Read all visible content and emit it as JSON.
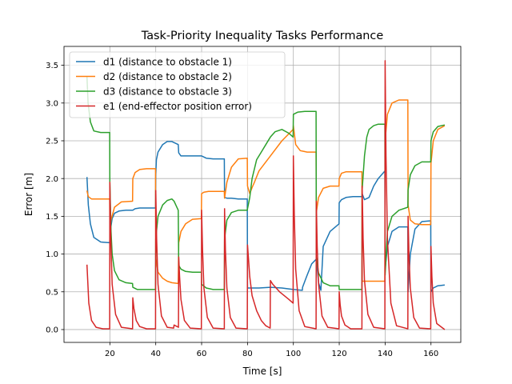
{
  "chart_data": {
    "type": "line",
    "title": "Task-Priority Inequality Tasks Performance",
    "xlabel": "Time [s]",
    "ylabel": "Error [m]",
    "xlim": [
      0,
      173
    ],
    "ylim": [
      -0.17,
      3.75
    ],
    "xticks": [
      20,
      40,
      60,
      80,
      100,
      120,
      140,
      160
    ],
    "yticks": [
      0.0,
      0.5,
      1.0,
      1.5,
      2.0,
      2.5,
      3.0,
      3.5
    ],
    "xtick_labels": [
      "20",
      "40",
      "60",
      "80",
      "100",
      "120",
      "140",
      "160"
    ],
    "ytick_labels": [
      "0.0",
      "0.5",
      "1.0",
      "1.5",
      "2.0",
      "2.5",
      "3.0",
      "3.5"
    ],
    "grid": true,
    "legend_position": "top-left",
    "series": [
      {
        "name": "d1 (distance to obstacle 1)",
        "color": "#1f77b4",
        "x": [
          10,
          10.6,
          11.5,
          13,
          16,
          19.9,
          20,
          20.4,
          21,
          22,
          24,
          27,
          29.9,
          30,
          31,
          33,
          36,
          39.9,
          40,
          40.3,
          41,
          43,
          45,
          47,
          49.8,
          50,
          51,
          55,
          59.9,
          60,
          62,
          65,
          69.9,
          70,
          71,
          73,
          76,
          79.9,
          80,
          85,
          90,
          95,
          100,
          103.9,
          104,
          106,
          108,
          109.9,
          110,
          111,
          112,
          113,
          116,
          119.9,
          120,
          121,
          123,
          126,
          129.9,
          130,
          131,
          133,
          135,
          137,
          139.9,
          140,
          141,
          143,
          146,
          149.9,
          150,
          151,
          153,
          156,
          159.9,
          160,
          161,
          163,
          166
        ],
        "y": [
          2.02,
          1.65,
          1.4,
          1.22,
          1.16,
          1.15,
          1.2,
          1.35,
          1.47,
          1.54,
          1.57,
          1.58,
          1.58,
          1.58,
          1.6,
          1.61,
          1.61,
          1.61,
          2.05,
          2.25,
          2.35,
          2.45,
          2.49,
          2.49,
          2.45,
          2.34,
          2.3,
          2.3,
          2.3,
          2.3,
          2.27,
          2.26,
          2.26,
          1.75,
          1.74,
          1.74,
          1.73,
          1.73,
          0.55,
          0.55,
          0.56,
          0.55,
          0.53,
          0.52,
          0.56,
          0.72,
          0.87,
          0.93,
          0.95,
          0.62,
          0.52,
          1.1,
          1.3,
          1.4,
          1.68,
          1.72,
          1.75,
          1.76,
          1.76,
          1.8,
          1.72,
          1.75,
          1.9,
          2.0,
          2.1,
          0.8,
          1.1,
          1.3,
          1.36,
          1.36,
          0.5,
          1.0,
          1.33,
          1.43,
          1.44,
          0.5,
          0.55,
          0.58,
          0.59
        ]
      },
      {
        "name": "d2 (distance to obstacle 2)",
        "color": "#ff7f0e",
        "x": [
          10,
          10.6,
          12,
          15,
          19.9,
          20,
          20.5,
          22,
          25,
          29.9,
          30,
          31,
          33,
          36,
          39.9,
          40,
          41,
          43,
          45,
          47,
          49.8,
          50,
          51,
          53,
          56,
          59.9,
          60,
          61,
          63,
          66,
          69.9,
          70,
          71,
          73,
          76,
          79.9,
          80,
          81,
          82,
          83,
          85,
          90,
          95,
          99.9,
          100,
          101,
          103,
          106,
          109.9,
          110,
          111,
          113,
          116,
          119.9,
          120,
          121,
          123,
          126,
          129.9,
          130,
          132,
          135,
          139.9,
          140,
          141,
          143,
          146,
          149.9,
          150,
          151,
          153,
          156,
          159.9,
          160,
          161,
          163,
          166
        ],
        "y": [
          1.84,
          1.76,
          1.73,
          1.73,
          1.73,
          1.32,
          1.45,
          1.62,
          1.69,
          1.7,
          2.0,
          2.08,
          2.12,
          2.13,
          2.13,
          0.95,
          0.76,
          0.68,
          0.64,
          0.62,
          0.61,
          1.15,
          1.3,
          1.4,
          1.46,
          1.47,
          1.8,
          1.82,
          1.83,
          1.83,
          1.83,
          1.74,
          1.95,
          2.15,
          2.26,
          2.27,
          1.9,
          1.8,
          1.88,
          1.95,
          2.1,
          2.3,
          2.5,
          2.65,
          2.7,
          2.45,
          2.37,
          2.35,
          2.35,
          1.55,
          1.75,
          1.87,
          1.9,
          1.9,
          2.0,
          2.07,
          2.09,
          2.09,
          2.09,
          0.64,
          0.64,
          0.64,
          0.64,
          2.5,
          2.85,
          3.0,
          3.04,
          3.04,
          1.65,
          1.45,
          1.4,
          1.39,
          1.39,
          2.2,
          2.5,
          2.65,
          2.7
        ]
      },
      {
        "name": "d3 (distance to obstacle 3)",
        "color": "#2ca02c",
        "x": [
          10,
          10.5,
          11.5,
          13,
          16,
          19.9,
          20,
          20.5,
          21,
          22,
          24,
          27,
          29.9,
          30,
          32,
          35,
          39.9,
          40,
          41,
          43,
          45,
          47,
          48,
          49.8,
          50,
          51,
          53,
          56,
          59.9,
          60,
          62,
          65,
          69.9,
          70,
          71,
          73,
          76,
          79.9,
          80,
          81,
          82,
          84,
          86,
          88,
          90,
          92,
          95,
          98,
          99.9,
          100,
          102,
          105,
          109.9,
          110,
          111,
          113,
          116,
          119.9,
          120,
          121,
          123,
          126,
          129.9,
          130,
          131,
          132,
          133,
          135,
          137,
          139.9,
          140,
          141,
          143,
          146,
          149.9,
          150,
          151,
          153,
          156,
          159.9,
          160,
          161,
          163,
          166
        ],
        "y": [
          3.35,
          3.0,
          2.75,
          2.63,
          2.61,
          2.61,
          1.95,
          1.3,
          1.0,
          0.78,
          0.66,
          0.62,
          0.61,
          0.56,
          0.53,
          0.53,
          0.53,
          1.2,
          1.5,
          1.65,
          1.71,
          1.73,
          1.7,
          1.58,
          0.85,
          0.8,
          0.77,
          0.76,
          0.76,
          0.6,
          0.55,
          0.53,
          0.53,
          1.2,
          1.45,
          1.55,
          1.58,
          1.58,
          1.6,
          1.75,
          2.0,
          2.25,
          2.35,
          2.45,
          2.55,
          2.62,
          2.65,
          2.6,
          2.55,
          2.85,
          2.88,
          2.89,
          2.89,
          0.96,
          0.75,
          0.62,
          0.58,
          0.58,
          0.53,
          0.53,
          0.53,
          0.53,
          0.53,
          1.85,
          2.3,
          2.55,
          2.65,
          2.7,
          2.72,
          2.72,
          0.72,
          1.3,
          1.5,
          1.58,
          1.62,
          1.85,
          2.05,
          2.17,
          2.22,
          2.22,
          2.5,
          2.62,
          2.69,
          2.71
        ]
      },
      {
        "name": "e1 (end-effector position error)",
        "color": "#d62728",
        "x": [
          10,
          10.8,
          12,
          14,
          17,
          19.9,
          20,
          20.4,
          21,
          22.5,
          25,
          29.9,
          30,
          30.5,
          31.5,
          33,
          36,
          39.9,
          40,
          40.4,
          41,
          42.5,
          45,
          47.8,
          48,
          49.9,
          50,
          50.4,
          51,
          52.5,
          55,
          59.9,
          60,
          60.4,
          61,
          62.5,
          65,
          69.9,
          70,
          70.4,
          71,
          72.5,
          75,
          79.9,
          80,
          81,
          82,
          84,
          86,
          88,
          89.9,
          90,
          91,
          94,
          98,
          99.9,
          100,
          100.4,
          101,
          102.5,
          105,
          109.9,
          110,
          110.4,
          111,
          112.5,
          115,
          119.9,
          120,
          120.4,
          121,
          122.5,
          125,
          129.9,
          130,
          130.4,
          131,
          132.5,
          135,
          139.9,
          140,
          140.4,
          141,
          142.5,
          145,
          149.9,
          150,
          150.4,
          151,
          152.5,
          155,
          159.9,
          160,
          160.4,
          161,
          162.5,
          166
        ],
        "y": [
          0.86,
          0.35,
          0.12,
          0.03,
          0.01,
          0.01,
          1.95,
          1.2,
          0.6,
          0.2,
          0.03,
          0.01,
          0.42,
          0.28,
          0.12,
          0.04,
          0.01,
          0.01,
          1.84,
          1.2,
          0.6,
          0.18,
          0.03,
          0.02,
          0.06,
          0.03,
          0.96,
          0.7,
          0.4,
          0.12,
          0.02,
          0.01,
          1.58,
          1.05,
          0.55,
          0.16,
          0.02,
          0.01,
          1.6,
          1.05,
          0.55,
          0.16,
          0.02,
          0.01,
          1.12,
          0.7,
          0.45,
          0.25,
          0.12,
          0.05,
          0.02,
          0.65,
          0.6,
          0.5,
          0.4,
          0.35,
          2.3,
          1.5,
          0.8,
          0.25,
          0.04,
          0.01,
          1.7,
          1.1,
          0.6,
          0.18,
          0.03,
          0.01,
          0.5,
          0.33,
          0.18,
          0.06,
          0.01,
          0.01,
          1.9,
          1.2,
          0.65,
          0.2,
          0.03,
          0.01,
          3.56,
          2.3,
          1.2,
          0.35,
          0.05,
          0.01,
          1.5,
          1.0,
          0.55,
          0.16,
          0.02,
          0.01,
          1.1,
          0.7,
          0.35,
          0.08,
          0.0
        ]
      }
    ]
  }
}
